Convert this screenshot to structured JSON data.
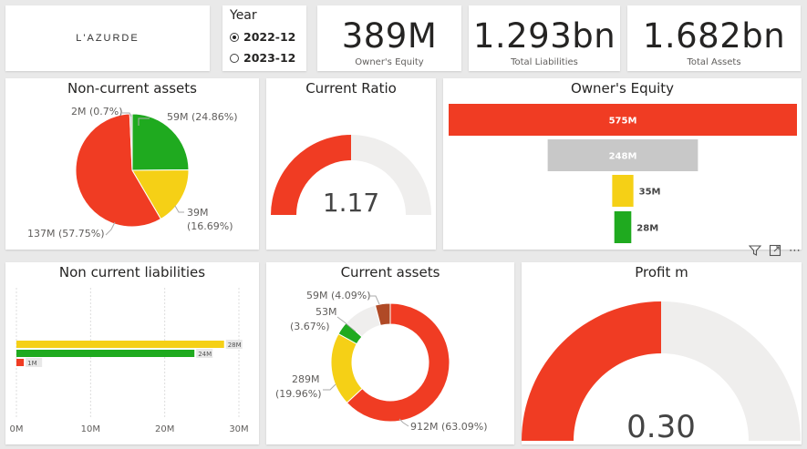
{
  "brand": {
    "logo_text": "L'AZURDE"
  },
  "slicer": {
    "title": "Year",
    "options": [
      {
        "label": "2022-12",
        "selected": true
      },
      {
        "label": "2023-12",
        "selected": false
      }
    ]
  },
  "kpis": [
    {
      "value": "389M",
      "label": "Owner's Equity"
    },
    {
      "value": "1.293bn",
      "label": "Total Liabilities"
    },
    {
      "value": "1.682bn",
      "label": "Total Assets"
    }
  ],
  "colors": {
    "red": "#f03c23",
    "green": "#1faa1f",
    "yellow": "#f5d016",
    "gray": "#c8c8c8",
    "light": "#efeeed",
    "brown": "#b04a26"
  },
  "non_current_assets": {
    "title": "Non-current assets",
    "chart_data": {
      "type": "pie",
      "slices": [
        {
          "label": "59M (24.86%)",
          "value": 24.86,
          "color": "green"
        },
        {
          "label": "39M (16.69%)",
          "value": 16.69,
          "color": "yellow"
        },
        {
          "label": "137M (57.75%)",
          "value": 57.75,
          "color": "red"
        },
        {
          "label": "2M (0.7%)",
          "value": 0.7,
          "color": "gray"
        }
      ]
    }
  },
  "current_ratio": {
    "title": "Current Ratio",
    "value_label": "1.17",
    "chart_data": {
      "type": "gauge",
      "fraction": 0.5
    }
  },
  "owners_equity": {
    "title": "Owner's Equity",
    "chart_data": {
      "type": "bar",
      "bars": [
        {
          "label": "575M",
          "value": 575,
          "color": "red"
        },
        {
          "label": "248M",
          "value": 248,
          "color": "gray"
        },
        {
          "label": "35M",
          "value": 35,
          "color": "yellow"
        },
        {
          "label": "28M",
          "value": 28,
          "color": "green"
        }
      ]
    }
  },
  "non_current_liabilities": {
    "title": "Non current liabilities",
    "chart_data": {
      "type": "bar",
      "xlim": [
        0,
        30
      ],
      "ticks": [
        "0M",
        "10M",
        "20M",
        "30M"
      ],
      "bars": [
        {
          "label": "28M",
          "value": 28,
          "color": "yellow"
        },
        {
          "label": "24M",
          "value": 24,
          "color": "green"
        },
        {
          "label": "1M",
          "value": 1,
          "color": "red"
        }
      ]
    }
  },
  "current_assets": {
    "title": "Current assets",
    "chart_data": {
      "type": "pie",
      "slices": [
        {
          "label": "912M (63.09%)",
          "value": 63.09,
          "color": "red"
        },
        {
          "label": "289M (19.96%)",
          "value": 19.96,
          "color": "yellow"
        },
        {
          "label": "53M (3.67%)",
          "value": 3.67,
          "color": "green"
        },
        {
          "label": "",
          "value": 9.19,
          "color": "light"
        },
        {
          "label": "59M (4.09%)",
          "value": 4.09,
          "color": "brown"
        }
      ]
    }
  },
  "profit_margin": {
    "title": "Profit m",
    "value_label": "0.30",
    "chart_data": {
      "type": "gauge",
      "fraction": 0.5
    }
  }
}
